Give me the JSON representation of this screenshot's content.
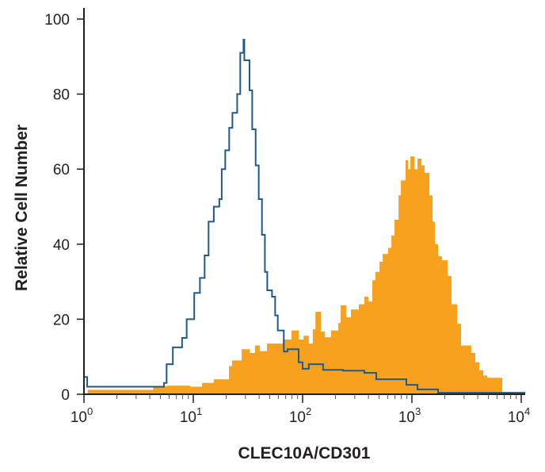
{
  "chart_data": {
    "type": "histogram",
    "title": "",
    "xlabel": "CLEC10A/CD301",
    "ylabel": "Relative Cell Number",
    "x_scale": "log",
    "xlim": [
      1,
      10000
    ],
    "ylim": [
      0,
      100
    ],
    "x_ticks": [
      {
        "base": "10",
        "exp": "0"
      },
      {
        "base": "10",
        "exp": "1"
      },
      {
        "base": "10",
        "exp": "2"
      },
      {
        "base": "10",
        "exp": "3"
      },
      {
        "base": "10",
        "exp": "4"
      }
    ],
    "y_ticks": [
      "0",
      "20",
      "40",
      "60",
      "80",
      "100"
    ],
    "grid": false,
    "series": [
      {
        "style": "filled",
        "color": "#F7A11F",
        "steps": [
          [
            1.08,
            1.2
          ],
          [
            4.3,
            2.2
          ],
          [
            5.8,
            2.3
          ],
          [
            9.4,
            2.0
          ],
          [
            12,
            3
          ],
          [
            15.4,
            4
          ],
          [
            21.2,
            7.5
          ],
          [
            22.6,
            9
          ],
          [
            27.7,
            12
          ],
          [
            32.7,
            11
          ],
          [
            36.7,
            13
          ],
          [
            40.6,
            11.5
          ],
          [
            47.2,
            13.5
          ],
          [
            65.9,
            14.6
          ],
          [
            79.2,
            17
          ],
          [
            92,
            14.6
          ],
          [
            102,
            15.6
          ],
          [
            114,
            13.5
          ],
          [
            124,
            17.3
          ],
          [
            131,
            22
          ],
          [
            147,
            16.7
          ],
          [
            160,
            15.2
          ],
          [
            182,
            17
          ],
          [
            212,
            19
          ],
          [
            223,
            23.7
          ],
          [
            250,
            20.5
          ],
          [
            277,
            22.6
          ],
          [
            327,
            24
          ],
          [
            367,
            26
          ],
          [
            399,
            24.7
          ],
          [
            434,
            30.4
          ],
          [
            464,
            32.6
          ],
          [
            505,
            35.3
          ],
          [
            540,
            37.4
          ],
          [
            606,
            39
          ],
          [
            649,
            42.3
          ],
          [
            693,
            46.5
          ],
          [
            754,
            53
          ],
          [
            793,
            57
          ],
          [
            875,
            62.4
          ],
          [
            920,
            60
          ],
          [
            968,
            63.4
          ],
          [
            1052,
            60
          ],
          [
            1125,
            62.8
          ],
          [
            1222,
            61
          ],
          [
            1306,
            59
          ],
          [
            1443,
            53
          ],
          [
            1543,
            46
          ],
          [
            1622,
            40
          ],
          [
            1735,
            36.8
          ],
          [
            1884,
            35.7
          ],
          [
            2118,
            31.5
          ],
          [
            2301,
            24
          ],
          [
            2588,
            18.8
          ],
          [
            2812,
            13
          ],
          [
            3490,
            11
          ],
          [
            3800,
            8.5
          ],
          [
            4130,
            6.4
          ],
          [
            4490,
            5
          ],
          [
            4880,
            4.4
          ],
          [
            6700,
            0
          ]
        ]
      },
      {
        "style": "outline",
        "color": "#1F5A8A",
        "steps": [
          [
            1.0,
            4.6
          ],
          [
            1.07,
            2
          ],
          [
            5.4,
            3
          ],
          [
            5.7,
            8
          ],
          [
            6.5,
            12.5
          ],
          [
            7.9,
            15
          ],
          [
            8.7,
            20
          ],
          [
            10.2,
            27
          ],
          [
            11.5,
            31
          ],
          [
            12.7,
            37
          ],
          [
            13.8,
            46
          ],
          [
            15.4,
            50
          ],
          [
            17.3,
            52
          ],
          [
            18.2,
            60
          ],
          [
            19.6,
            65
          ],
          [
            21.3,
            71
          ],
          [
            22.8,
            75
          ],
          [
            25.2,
            80
          ],
          [
            26.9,
            91
          ],
          [
            28.8,
            94.5
          ],
          [
            29.3,
            89
          ],
          [
            32.7,
            81
          ],
          [
            34.6,
            70.6
          ],
          [
            37.2,
            61
          ],
          [
            39.7,
            52
          ],
          [
            42.5,
            42.5
          ],
          [
            45.2,
            32.6
          ],
          [
            47.5,
            27.7
          ],
          [
            52.5,
            26
          ],
          [
            56.1,
            21
          ],
          [
            59.3,
            17
          ],
          [
            67.3,
            11.4
          ],
          [
            72.8,
            12
          ],
          [
            92,
            8.5
          ],
          [
            100,
            6.8
          ],
          [
            114,
            8
          ],
          [
            154,
            6.5
          ],
          [
            234,
            6.3
          ],
          [
            367,
            5.7
          ],
          [
            472,
            4
          ],
          [
            890,
            2.5
          ],
          [
            1125,
            1.3
          ],
          [
            1735,
            0.4
          ],
          [
            10700,
            0
          ]
        ]
      }
    ]
  }
}
